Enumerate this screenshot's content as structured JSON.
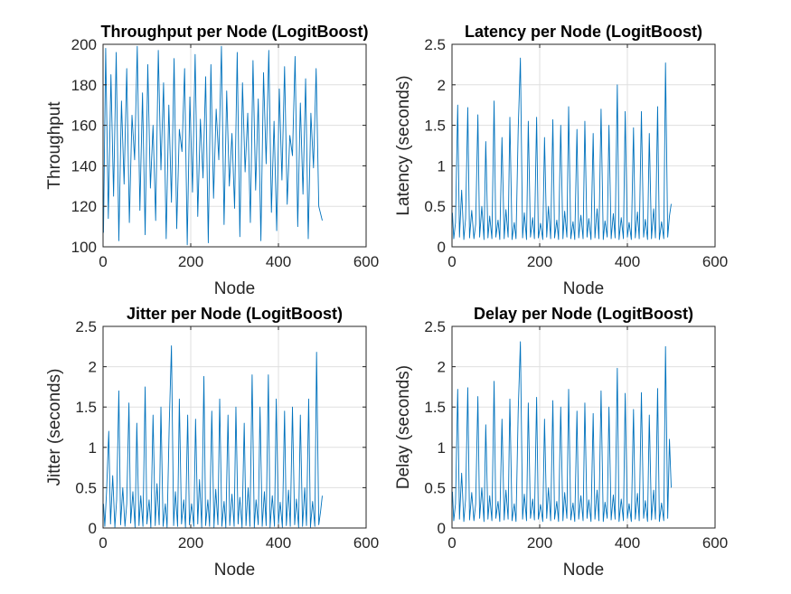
{
  "figure": {
    "background": "#ffffff",
    "line_color": "#0072bd",
    "grid_color": "#dfdfdf"
  },
  "chart_data": [
    {
      "type": "line",
      "title": "Throughput per Node (LogitBoost)",
      "xlabel": "Node",
      "ylabel": "Throughput",
      "xlim": [
        0,
        600
      ],
      "ylim": [
        100,
        200
      ],
      "xticks": [
        0,
        200,
        400,
        600
      ],
      "yticks": [
        100,
        120,
        140,
        160,
        180,
        200
      ],
      "grid": true,
      "series": [
        {
          "color": "#0072bd",
          "x": [
            1,
            6,
            12,
            18,
            24,
            30,
            36,
            42,
            48,
            54,
            60,
            66,
            72,
            78,
            84,
            90,
            96,
            102,
            108,
            114,
            120,
            126,
            132,
            138,
            144,
            150,
            156,
            162,
            168,
            174,
            180,
            186,
            192,
            198,
            204,
            210,
            216,
            222,
            228,
            234,
            240,
            246,
            252,
            258,
            264,
            270,
            276,
            282,
            288,
            294,
            300,
            306,
            312,
            318,
            324,
            330,
            336,
            342,
            348,
            354,
            360,
            366,
            372,
            378,
            384,
            390,
            396,
            402,
            408,
            414,
            420,
            426,
            432,
            438,
            444,
            450,
            456,
            462,
            468,
            474,
            480,
            486,
            492,
            500
          ],
          "values": [
            107,
            198,
            114,
            185,
            125,
            196,
            103,
            172,
            131,
            188,
            112,
            165,
            143,
            199,
            118,
            176,
            106,
            190,
            129,
            160,
            113,
            197,
            138,
            181,
            104,
            170,
            122,
            193,
            109,
            158,
            147,
            188,
            101,
            174,
            127,
            195,
            115,
            163,
            134,
            184,
            102,
            190,
            124,
            168,
            143,
            199,
            111,
            177,
            130,
            156,
            119,
            196,
            105,
            181,
            137,
            166,
            112,
            192,
            128,
            173,
            103,
            186,
            141,
            197,
            117,
            162,
            108,
            178,
            133,
            189,
            121,
            155,
            145,
            194,
            110,
            171,
            126,
            183,
            104,
            166,
            139,
            188,
            120,
            113
          ]
        }
      ]
    },
    {
      "type": "line",
      "title": "Latency per Node (LogitBoost)",
      "xlabel": "Node",
      "ylabel": "Latency (seconds)",
      "xlim": [
        0,
        600
      ],
      "ylim": [
        0,
        2.5
      ],
      "xticks": [
        0,
        200,
        400,
        600
      ],
      "yticks": [
        0,
        0.5,
        1,
        1.5,
        2,
        2.5
      ],
      "ytick_labels": [
        "0",
        "0.5",
        "1",
        "1.5",
        "2",
        "2.5"
      ],
      "grid": true,
      "series": [
        {
          "color": "#0072bd",
          "x": [
            1,
            4,
            8,
            13,
            17,
            22,
            27,
            31,
            36,
            40,
            45,
            50,
            54,
            59,
            63,
            68,
            73,
            77,
            82,
            86,
            91,
            96,
            100,
            105,
            109,
            114,
            119,
            123,
            128,
            132,
            137,
            142,
            146,
            151,
            156,
            161,
            165,
            170,
            174,
            179,
            184,
            188,
            193,
            197,
            202,
            207,
            211,
            216,
            220,
            225,
            230,
            234,
            239,
            243,
            248,
            253,
            257,
            262,
            266,
            271,
            276,
            280,
            285,
            289,
            294,
            299,
            303,
            308,
            312,
            317,
            322,
            326,
            331,
            335,
            340,
            345,
            349,
            354,
            358,
            363,
            368,
            372,
            377,
            381,
            386,
            391,
            395,
            400,
            404,
            409,
            414,
            418,
            423,
            427,
            432,
            437,
            441,
            446,
            450,
            455,
            460,
            464,
            469,
            473,
            478,
            483,
            487,
            492,
            496,
            500
          ],
          "values": [
            0.42,
            0.1,
            0.3,
            1.75,
            0.12,
            0.7,
            0.09,
            0.35,
            1.72,
            0.11,
            0.45,
            0.1,
            0.28,
            1.63,
            0.12,
            0.5,
            0.09,
            1.3,
            0.11,
            0.38,
            0.1,
            1.8,
            0.12,
            0.33,
            0.09,
            1.35,
            0.1,
            0.46,
            0.12,
            1.6,
            0.09,
            0.3,
            0.1,
            1.45,
            2.33,
            0.11,
            0.42,
            0.09,
            1.55,
            0.12,
            0.36,
            0.1,
            1.6,
            0.11,
            0.29,
            0.09,
            1.35,
            0.12,
            0.5,
            0.1,
            1.57,
            0.11,
            0.33,
            0.09,
            1.5,
            0.1,
            0.44,
            0.12,
            1.73,
            0.1,
            0.31,
            0.09,
            1.45,
            0.11,
            0.39,
            0.1,
            1.55,
            0.12,
            0.35,
            0.09,
            1.4,
            0.11,
            0.47,
            0.1,
            1.7,
            0.09,
            0.32,
            0.12,
            1.5,
            0.1,
            0.41,
            0.11,
            2.0,
            0.09,
            0.36,
            0.1,
            1.67,
            0.12,
            0.3,
            0.09,
            1.47,
            0.11,
            0.43,
            0.1,
            1.67,
            0.12,
            0.34,
            0.09,
            1.4,
            0.1,
            0.47,
            0.11,
            1.73,
            0.09,
            0.31,
            0.1,
            2.27,
            0.12,
            0.38,
            0.53
          ]
        }
      ]
    },
    {
      "type": "line",
      "title": "Jitter per Node (LogitBoost)",
      "xlabel": "Node",
      "ylabel": "Jitter (seconds)",
      "xlim": [
        0,
        600
      ],
      "ylim": [
        0,
        2.5
      ],
      "xticks": [
        0,
        200,
        400,
        600
      ],
      "yticks": [
        0,
        0.5,
        1,
        1.5,
        2,
        2.5
      ],
      "ytick_labels": [
        "0",
        "0.5",
        "1",
        "1.5",
        "2",
        "2.5"
      ],
      "grid": true,
      "series": [
        {
          "color": "#0072bd",
          "x": [
            1,
            4,
            8,
            13,
            17,
            22,
            27,
            31,
            36,
            40,
            45,
            50,
            54,
            59,
            63,
            68,
            73,
            77,
            82,
            86,
            91,
            96,
            100,
            105,
            109,
            114,
            119,
            123,
            128,
            132,
            137,
            142,
            146,
            151,
            156,
            161,
            165,
            170,
            174,
            179,
            184,
            188,
            193,
            197,
            202,
            207,
            211,
            216,
            220,
            225,
            230,
            234,
            239,
            243,
            248,
            253,
            257,
            262,
            266,
            271,
            276,
            280,
            285,
            289,
            294,
            299,
            303,
            308,
            312,
            317,
            322,
            326,
            331,
            335,
            340,
            345,
            349,
            354,
            358,
            363,
            368,
            372,
            377,
            381,
            386,
            391,
            395,
            400,
            404,
            409,
            414,
            418,
            423,
            427,
            432,
            437,
            441,
            446,
            450,
            455,
            460,
            464,
            469,
            473,
            478,
            483,
            487,
            492,
            496,
            500
          ],
          "values": [
            0.3,
            0.02,
            0.45,
            1.2,
            0.05,
            0.65,
            0.01,
            0.35,
            1.7,
            0.04,
            0.5,
            0.02,
            0.3,
            1.55,
            0.06,
            0.45,
            0.01,
            1.3,
            0.03,
            0.4,
            0.02,
            1.75,
            0.05,
            0.35,
            0.01,
            1.4,
            0.03,
            0.55,
            0.04,
            1.5,
            0.02,
            0.3,
            0.01,
            1.3,
            2.26,
            0.03,
            0.45,
            0.02,
            1.6,
            0.05,
            0.35,
            0.01,
            1.4,
            0.04,
            0.3,
            0.02,
            1.35,
            0.05,
            0.6,
            0.01,
            1.88,
            0.03,
            0.35,
            0.02,
            1.45,
            0.01,
            0.48,
            0.04,
            1.6,
            0.02,
            0.33,
            0.01,
            1.4,
            0.03,
            0.42,
            0.02,
            1.5,
            0.05,
            0.38,
            0.01,
            1.3,
            0.03,
            0.5,
            0.02,
            1.9,
            0.01,
            0.35,
            0.04,
            1.5,
            0.02,
            0.45,
            0.03,
            1.9,
            0.01,
            0.4,
            0.02,
            1.6,
            0.05,
            0.32,
            0.01,
            1.45,
            0.03,
            0.47,
            0.02,
            1.5,
            0.04,
            0.36,
            0.01,
            1.4,
            0.02,
            0.5,
            0.03,
            1.6,
            0.01,
            0.33,
            0.02,
            2.18,
            0.04,
            0.2,
            0.4
          ]
        }
      ]
    },
    {
      "type": "line",
      "title": "Delay per Node (LogitBoost)",
      "xlabel": "Node",
      "ylabel": "Delay (seconds)",
      "xlim": [
        0,
        600
      ],
      "ylim": [
        0,
        2.5
      ],
      "xticks": [
        0,
        200,
        400,
        600
      ],
      "yticks": [
        0,
        0.5,
        1,
        1.5,
        2,
        2.5
      ],
      "ytick_labels": [
        "0",
        "0.5",
        "1",
        "1.5",
        "2",
        "2.5"
      ],
      "grid": true,
      "series": [
        {
          "color": "#0072bd",
          "x": [
            1,
            4,
            8,
            13,
            17,
            22,
            27,
            31,
            36,
            40,
            45,
            50,
            54,
            59,
            63,
            68,
            73,
            77,
            82,
            86,
            91,
            96,
            100,
            105,
            109,
            114,
            119,
            123,
            128,
            132,
            137,
            142,
            146,
            151,
            156,
            161,
            165,
            170,
            174,
            179,
            184,
            188,
            193,
            197,
            202,
            207,
            211,
            216,
            220,
            225,
            230,
            234,
            239,
            243,
            248,
            253,
            257,
            262,
            266,
            271,
            276,
            280,
            285,
            289,
            294,
            299,
            303,
            308,
            312,
            317,
            322,
            326,
            331,
            335,
            340,
            345,
            349,
            354,
            358,
            363,
            368,
            372,
            377,
            381,
            386,
            391,
            395,
            400,
            404,
            409,
            414,
            418,
            423,
            427,
            432,
            437,
            441,
            446,
            450,
            455,
            460,
            464,
            469,
            473,
            478,
            483,
            487,
            492,
            496,
            500
          ],
          "values": [
            0.45,
            0.09,
            0.3,
            1.72,
            0.11,
            0.68,
            0.08,
            0.36,
            1.74,
            0.1,
            0.44,
            0.09,
            0.3,
            1.63,
            0.12,
            0.5,
            0.08,
            1.28,
            0.11,
            0.4,
            0.09,
            1.82,
            0.12,
            0.33,
            0.08,
            1.35,
            0.1,
            0.47,
            0.11,
            1.6,
            0.09,
            0.3,
            0.08,
            1.45,
            2.31,
            0.11,
            0.42,
            0.09,
            1.55,
            0.12,
            0.36,
            0.1,
            1.62,
            0.11,
            0.29,
            0.08,
            1.35,
            0.12,
            0.5,
            0.09,
            1.58,
            0.11,
            0.33,
            0.08,
            1.5,
            0.09,
            0.44,
            0.12,
            1.72,
            0.1,
            0.31,
            0.08,
            1.45,
            0.11,
            0.4,
            0.09,
            1.55,
            0.12,
            0.35,
            0.08,
            1.42,
            0.11,
            0.47,
            0.09,
            1.7,
            0.08,
            0.32,
            0.12,
            1.5,
            0.1,
            0.41,
            0.11,
            1.98,
            0.08,
            0.36,
            0.09,
            1.67,
            0.12,
            0.3,
            0.08,
            1.47,
            0.11,
            0.43,
            0.09,
            1.68,
            0.12,
            0.34,
            0.08,
            1.4,
            0.1,
            0.47,
            0.11,
            1.73,
            0.08,
            0.31,
            0.09,
            2.25,
            0.12,
            1.1,
            0.5
          ]
        }
      ]
    }
  ]
}
